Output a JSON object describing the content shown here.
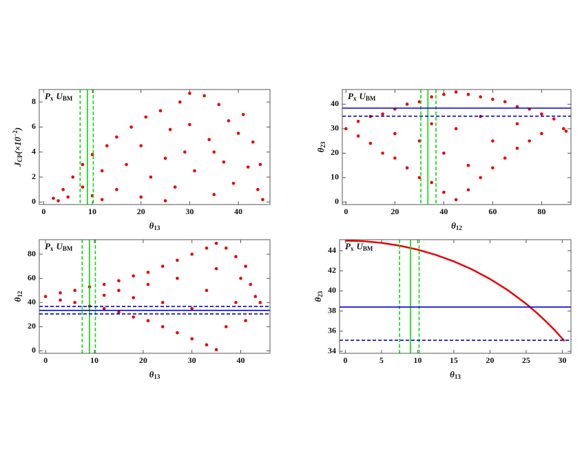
{
  "chart_data": [
    {
      "type": "scatter",
      "color": "#e80000",
      "annotation": [
        {
          "t": "P"
        },
        {
          "sub": "x"
        },
        {
          "t": "U"
        },
        {
          "sub": "BM"
        }
      ],
      "xlabel": [
        {
          "t": "θ"
        },
        {
          "sub": "13"
        }
      ],
      "ylabel": [
        {
          "t": "J"
        },
        {
          "sub": "CP"
        },
        {
          "t": "(×10"
        },
        {
          "sup": "−2"
        },
        {
          "t": ")"
        }
      ],
      "xlim": [
        -0.9,
        46.5
      ],
      "ylim": [
        -0.2,
        9
      ],
      "xticks": [
        0,
        10,
        20,
        30,
        40
      ],
      "yticks": [
        0,
        2,
        4,
        6,
        8
      ],
      "vlines": [
        {
          "value": 9,
          "dashed": false,
          "color": "#00dd00"
        },
        {
          "value": 7.5,
          "dashed": true,
          "color": "#00dd00"
        },
        {
          "value": 10.2,
          "dashed": true,
          "color": "#00dd00"
        }
      ],
      "hlines": [],
      "x": [
        2,
        4,
        5,
        6,
        8,
        8,
        10,
        10,
        12,
        13,
        15,
        15,
        17,
        18,
        20,
        20,
        21,
        22,
        24,
        25,
        26,
        27,
        28,
        29,
        30,
        30,
        31,
        33,
        34,
        35,
        36,
        37,
        38,
        39,
        40,
        41,
        42,
        43,
        44,
        44.5,
        45,
        3,
        12,
        25,
        35
      ],
      "values": [
        0.3,
        1.0,
        0.4,
        2.0,
        1.2,
        3.0,
        0.5,
        3.8,
        2.5,
        4.5,
        1.0,
        5.2,
        3.0,
        6.0,
        0.4,
        4.5,
        6.8,
        2.0,
        7.3,
        3.5,
        5.8,
        1.2,
        8.0,
        4.0,
        8.7,
        6.2,
        2.5,
        8.5,
        5.0,
        0.6,
        7.8,
        3.2,
        6.5,
        1.5,
        5.5,
        7.0,
        2.8,
        4.8,
        1.0,
        3.0,
        0.2,
        0.1,
        0.2,
        0.1,
        4.0
      ]
    },
    {
      "type": "scatter",
      "color": "#e80000",
      "annotation": [
        {
          "t": "P"
        },
        {
          "sub": "x"
        },
        {
          "t": "U"
        },
        {
          "sub": "BM"
        }
      ],
      "xlabel": [
        {
          "t": "θ"
        },
        {
          "sub": "12"
        }
      ],
      "ylabel": [
        {
          "t": "θ"
        },
        {
          "sub": "23"
        }
      ],
      "xlim": [
        -1.5,
        92
      ],
      "ylim": [
        -1,
        46
      ],
      "xticks": [
        0,
        20,
        40,
        60,
        80
      ],
      "yticks": [
        0,
        10,
        20,
        30,
        40
      ],
      "vlines": [
        {
          "value": 33.5,
          "dashed": false,
          "color": "#00dd00"
        },
        {
          "value": 30.6,
          "dashed": true,
          "color": "#00dd00"
        },
        {
          "value": 36.8,
          "dashed": true,
          "color": "#00dd00"
        }
      ],
      "hlines": [
        {
          "value": 38.4,
          "dashed": false,
          "color": "#0000d0"
        },
        {
          "value": 35.1,
          "dashed": true,
          "color": "#0000d0"
        }
      ],
      "x": [
        0,
        5,
        5,
        10,
        10,
        15,
        15,
        20,
        20,
        20,
        25,
        25,
        30,
        30,
        30,
        35,
        35,
        35,
        40,
        40,
        40,
        45,
        45,
        45,
        50,
        50,
        50,
        55,
        55,
        55,
        60,
        60,
        60,
        65,
        65,
        70,
        70,
        70,
        75,
        75,
        80,
        80,
        85,
        89,
        90
      ],
      "values": [
        30,
        33,
        27,
        35,
        24,
        36,
        20,
        38,
        18,
        28,
        40,
        14,
        41,
        10,
        25,
        43,
        8,
        32,
        44,
        4,
        20,
        45,
        1,
        30,
        44,
        5,
        15,
        43,
        10,
        35,
        42,
        14,
        25,
        41,
        18,
        39,
        22,
        32,
        38,
        25,
        36,
        28,
        34,
        30,
        29
      ]
    },
    {
      "type": "scatter",
      "color": "#e80000",
      "annotation": [
        {
          "t": "P"
        },
        {
          "sub": "x"
        },
        {
          "t": "U"
        },
        {
          "sub": "BM"
        }
      ],
      "xlabel": [
        {
          "t": "θ"
        },
        {
          "sub": "13"
        }
      ],
      "ylabel": [
        {
          "t": "θ"
        },
        {
          "sub": "12"
        }
      ],
      "xlim": [
        -1.3,
        46
      ],
      "ylim": [
        -2,
        92
      ],
      "xticks": [
        0,
        10,
        20,
        30,
        40
      ],
      "yticks": [
        0,
        20,
        40,
        60,
        80
      ],
      "vlines": [
        {
          "value": 9,
          "dashed": false,
          "color": "#00dd00"
        },
        {
          "value": 7.5,
          "dashed": true,
          "color": "#00dd00"
        },
        {
          "value": 10.2,
          "dashed": true,
          "color": "#00dd00"
        }
      ],
      "hlines": [
        {
          "value": 33.5,
          "dashed": false,
          "color": "#0000d0"
        },
        {
          "value": 30.6,
          "dashed": true,
          "color": "#0000d0"
        },
        {
          "value": 36.8,
          "dashed": true,
          "color": "#0000d0"
        }
      ],
      "x": [
        0,
        3,
        3,
        6,
        6,
        9,
        9,
        12,
        12,
        12,
        15,
        15,
        15,
        18,
        18,
        18,
        21,
        21,
        21,
        24,
        24,
        24,
        27,
        27,
        27,
        30,
        30,
        30,
        33,
        33,
        33,
        35,
        35,
        35,
        37,
        37,
        39,
        39,
        41,
        41,
        42,
        43,
        44,
        40
      ],
      "values": [
        45,
        48,
        42,
        50,
        40,
        53,
        37,
        55,
        35,
        46,
        58,
        32,
        50,
        62,
        28,
        44,
        65,
        25,
        55,
        70,
        20,
        40,
        75,
        15,
        60,
        80,
        10,
        35,
        85,
        5,
        50,
        89,
        1,
        68,
        85,
        20,
        78,
        40,
        70,
        25,
        55,
        45,
        40,
        60
      ]
    },
    {
      "type": "line",
      "color": "#e80000",
      "annotation": [
        {
          "t": "P"
        },
        {
          "sub": "x"
        },
        {
          "t": "U"
        },
        {
          "sub": "BM"
        }
      ],
      "xlabel": [
        {
          "t": "θ"
        },
        {
          "sub": "13"
        }
      ],
      "ylabel": [
        {
          "t": "θ"
        },
        {
          "sub": "23"
        }
      ],
      "xlim": [
        -0.8,
        31.2
      ],
      "ylim": [
        33.8,
        45.1
      ],
      "xticks": [
        0,
        5,
        10,
        15,
        20,
        25,
        30
      ],
      "yticks": [
        34,
        36,
        38,
        40,
        42,
        44
      ],
      "vlines": [
        {
          "value": 9,
          "dashed": false,
          "color": "#00dd00"
        },
        {
          "value": 7.5,
          "dashed": true,
          "color": "#00dd00"
        },
        {
          "value": 10.2,
          "dashed": true,
          "color": "#00dd00"
        }
      ],
      "hlines": [
        {
          "value": 38.4,
          "dashed": false,
          "color": "#0000d0"
        },
        {
          "value": 35.1,
          "dashed": true,
          "color": "#0000d0"
        }
      ],
      "x": [
        0,
        2.5,
        5,
        7.5,
        10,
        12.5,
        15,
        17.5,
        20,
        22.5,
        25,
        26.5,
        28,
        29,
        30,
        30.3
      ],
      "values": [
        45,
        44.95,
        44.78,
        44.5,
        44.11,
        43.59,
        42.94,
        42.15,
        41.19,
        40.06,
        38.72,
        37.8,
        36.79,
        36.06,
        35.26,
        35.02
      ]
    }
  ]
}
